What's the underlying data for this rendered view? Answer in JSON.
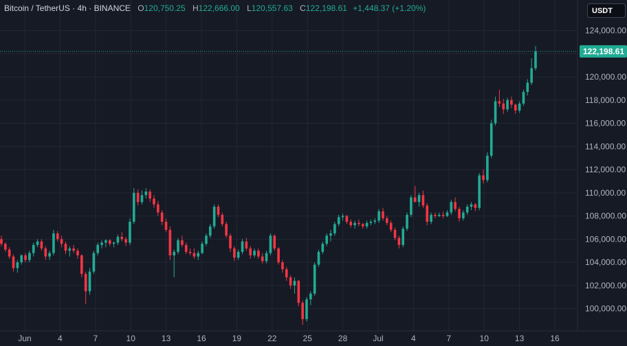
{
  "symbol": {
    "name": "Bitcoin / TetherUS",
    "interval": "4h",
    "exchange": "BINANCE",
    "separator": "·"
  },
  "ohlc": {
    "open_label": "O",
    "open": "120,750.25",
    "high_label": "H",
    "high": "122,666.00",
    "low_label": "L",
    "low": "120,557.63",
    "close_label": "C",
    "close": "122,198.61",
    "change": "+1,448.37 (+1.20%)"
  },
  "currency_button": "USDT",
  "last_price_label": "122,198.61",
  "colors": {
    "background": "#161a25",
    "grid": "#232735",
    "up": "#22ab94",
    "down": "#f23645",
    "text": "#b2b5be"
  },
  "chart_data": {
    "type": "candlestick",
    "y_ticks": [
      "124,000.00",
      "122,000.00",
      "120,000.00",
      "118,000.00",
      "116,000.00",
      "114,000.00",
      "112,000.00",
      "110,000.00",
      "108,000.00",
      "106,000.00",
      "104,000.00",
      "102,000.00",
      "100,000.00"
    ],
    "ylim": [
      98500,
      125500
    ],
    "x_ticks": [
      "Jun",
      "4",
      "7",
      "10",
      "13",
      "16",
      "19",
      "22",
      "25",
      "28",
      "Jul",
      "4",
      "7",
      "10",
      "13",
      "16"
    ],
    "last_price": 122198.61,
    "candles": [
      [
        106000,
        106300,
        105400,
        105600
      ],
      [
        105600,
        105700,
        104900,
        105100
      ],
      [
        105100,
        105300,
        104300,
        104500
      ],
      [
        104500,
        104700,
        103200,
        103500
      ],
      [
        103500,
        104200,
        103100,
        104000
      ],
      [
        104000,
        104700,
        103800,
        104600
      ],
      [
        104600,
        104800,
        104000,
        104200
      ],
      [
        104200,
        105000,
        104000,
        104800
      ],
      [
        104800,
        105700,
        104500,
        105500
      ],
      [
        105500,
        106000,
        105300,
        105800
      ],
      [
        105800,
        106000,
        105000,
        105200
      ],
      [
        105200,
        105400,
        104200,
        104500
      ],
      [
        104500,
        105000,
        104200,
        104800
      ],
      [
        104800,
        106800,
        104600,
        106500
      ],
      [
        106500,
        106700,
        105800,
        106000
      ],
      [
        106000,
        106300,
        105300,
        105600
      ],
      [
        105600,
        105800,
        104700,
        105000
      ],
      [
        105000,
        105400,
        104500,
        105200
      ],
      [
        105200,
        105500,
        104800,
        105000
      ],
      [
        105000,
        105200,
        104300,
        104600
      ],
      [
        104600,
        104700,
        102700,
        103000
      ],
      [
        103000,
        103200,
        100400,
        101500
      ],
      [
        101500,
        103500,
        101200,
        103200
      ],
      [
        103200,
        105000,
        103000,
        104800
      ],
      [
        104800,
        105700,
        104600,
        105500
      ],
      [
        105500,
        105900,
        105200,
        105700
      ],
      [
        105700,
        106000,
        105300,
        105900
      ],
      [
        105900,
        106000,
        105400,
        105600
      ],
      [
        105600,
        105800,
        105300,
        105700
      ],
      [
        105700,
        106400,
        105500,
        106200
      ],
      [
        106200,
        106600,
        105800,
        106000
      ],
      [
        106000,
        106200,
        105400,
        105700
      ],
      [
        105700,
        107800,
        105500,
        107500
      ],
      [
        107500,
        110400,
        107300,
        110000
      ],
      [
        110000,
        110300,
        108900,
        109200
      ],
      [
        109200,
        110200,
        109000,
        109800
      ],
      [
        109800,
        110400,
        109500,
        110100
      ],
      [
        110100,
        110300,
        109200,
        109500
      ],
      [
        109500,
        109800,
        108700,
        109000
      ],
      [
        109000,
        109300,
        108000,
        108300
      ],
      [
        108300,
        108500,
        107200,
        107500
      ],
      [
        107500,
        107800,
        106600,
        106800
      ],
      [
        106800,
        107100,
        104200,
        104600
      ],
      [
        104600,
        105100,
        102700,
        104900
      ],
      [
        104900,
        106100,
        104700,
        105900
      ],
      [
        105900,
        106300,
        105300,
        105500
      ],
      [
        105500,
        105700,
        104700,
        104900
      ],
      [
        104900,
        105200,
        104600,
        104800
      ],
      [
        104800,
        105200,
        104300,
        104500
      ],
      [
        104500,
        105000,
        104200,
        104800
      ],
      [
        104800,
        105800,
        104700,
        105600
      ],
      [
        105600,
        106500,
        105400,
        106300
      ],
      [
        106300,
        107300,
        106100,
        107100
      ],
      [
        107100,
        109000,
        106900,
        108800
      ],
      [
        108800,
        109000,
        107900,
        108100
      ],
      [
        108100,
        108300,
        107100,
        107300
      ],
      [
        107300,
        107500,
        106100,
        106300
      ],
      [
        106300,
        106500,
        104900,
        105200
      ],
      [
        105200,
        105400,
        104100,
        104400
      ],
      [
        104400,
        105100,
        104200,
        104900
      ],
      [
        104900,
        106000,
        104700,
        105800
      ],
      [
        105800,
        106100,
        105000,
        105200
      ],
      [
        105200,
        105400,
        104300,
        104600
      ],
      [
        104600,
        105200,
        104400,
        105000
      ],
      [
        105000,
        105200,
        104300,
        104500
      ],
      [
        104500,
        104800,
        103900,
        104100
      ],
      [
        104100,
        105000,
        103900,
        104800
      ],
      [
        104800,
        106500,
        104600,
        106300
      ],
      [
        106300,
        106400,
        105000,
        105200
      ],
      [
        105200,
        105300,
        103800,
        104000
      ],
      [
        104000,
        104200,
        103100,
        103400
      ],
      [
        103400,
        103600,
        102400,
        102700
      ],
      [
        102700,
        102900,
        101700,
        102000
      ],
      [
        102000,
        102700,
        101300,
        102400
      ],
      [
        102400,
        102500,
        100200,
        100500
      ],
      [
        100500,
        100700,
        98600,
        99100
      ],
      [
        99100,
        101000,
        98900,
        100800
      ],
      [
        100800,
        101500,
        100300,
        101300
      ],
      [
        101300,
        104000,
        101100,
        103800
      ],
      [
        103800,
        105100,
        103600,
        104900
      ],
      [
        104900,
        105800,
        104700,
        105600
      ],
      [
        105600,
        106500,
        105400,
        106300
      ],
      [
        106300,
        106800,
        105800,
        106500
      ],
      [
        106500,
        107500,
        106300,
        107300
      ],
      [
        107300,
        108100,
        107100,
        107900
      ],
      [
        107900,
        108200,
        107600,
        108000
      ],
      [
        108000,
        108100,
        107300,
        107500
      ],
      [
        107500,
        107700,
        107000,
        107200
      ],
      [
        107200,
        107600,
        106900,
        107400
      ],
      [
        107400,
        107700,
        107100,
        107300
      ],
      [
        107300,
        107400,
        106900,
        107100
      ],
      [
        107100,
        107600,
        106900,
        107400
      ],
      [
        107400,
        107700,
        107200,
        107500
      ],
      [
        107500,
        107800,
        107300,
        107600
      ],
      [
        107600,
        108600,
        107400,
        108400
      ],
      [
        108400,
        108700,
        107600,
        107800
      ],
      [
        107800,
        108000,
        107200,
        107400
      ],
      [
        107400,
        107600,
        106600,
        106800
      ],
      [
        106800,
        107000,
        105900,
        106100
      ],
      [
        106100,
        106300,
        105200,
        105500
      ],
      [
        105500,
        107100,
        105300,
        106900
      ],
      [
        106900,
        108300,
        106700,
        108100
      ],
      [
        108100,
        109800,
        107900,
        109600
      ],
      [
        109600,
        110600,
        109400,
        109200
      ],
      [
        109200,
        110000,
        108800,
        109800
      ],
      [
        109800,
        110200,
        108700,
        108900
      ],
      [
        108900,
        109100,
        107200,
        107500
      ],
      [
        107500,
        108300,
        107300,
        108100
      ],
      [
        108100,
        108300,
        107800,
        108000
      ],
      [
        108000,
        108300,
        107900,
        108100
      ],
      [
        108100,
        108400,
        107800,
        108000
      ],
      [
        108000,
        108500,
        107900,
        108300
      ],
      [
        108300,
        109400,
        108100,
        109200
      ],
      [
        109200,
        109600,
        108400,
        108600
      ],
      [
        108600,
        108800,
        107500,
        107800
      ],
      [
        107800,
        108500,
        107600,
        108300
      ],
      [
        108300,
        109000,
        108100,
        108800
      ],
      [
        108800,
        109200,
        108500,
        109000
      ],
      [
        109000,
        109100,
        108400,
        108700
      ],
      [
        108700,
        111700,
        108500,
        111500
      ],
      [
        111500,
        112000,
        110800,
        111100
      ],
      [
        111100,
        113500,
        110900,
        113200
      ],
      [
        113200,
        116300,
        113000,
        116000
      ],
      [
        116000,
        118300,
        115800,
        117900
      ],
      [
        117900,
        118900,
        117400,
        117700
      ],
      [
        117700,
        118100,
        116800,
        117200
      ],
      [
        117200,
        118200,
        117000,
        118000
      ],
      [
        118000,
        118300,
        117300,
        117600
      ],
      [
        117600,
        117700,
        116800,
        117100
      ],
      [
        117100,
        117900,
        116900,
        117700
      ],
      [
        117700,
        118900,
        117500,
        118700
      ],
      [
        118700,
        119800,
        118400,
        119500
      ],
      [
        119500,
        121600,
        119300,
        120750.25
      ],
      [
        120750.25,
        122666,
        120557.63,
        122198.61
      ]
    ]
  }
}
